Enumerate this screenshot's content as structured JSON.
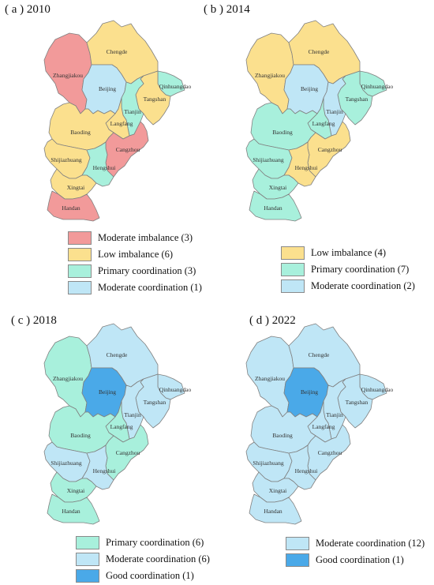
{
  "colors": {
    "moderate_imbalance": "#f29a9a",
    "low_imbalance": "#fbe08e",
    "primary_coordination": "#a8f0dc",
    "moderate_coordination": "#bfe6f6",
    "good_coordination": "#4aa9e8",
    "border": "#808080"
  },
  "cities": [
    "Zhangjiakou",
    "Chengde",
    "Beijing",
    "Qinhuangdao",
    "Tangshan",
    "Tianjin",
    "Langfang",
    "Baoding",
    "Cangzhou",
    "Shijiazhuang",
    "Hengshui",
    "Xingtai",
    "Handan"
  ],
  "panels": [
    {
      "title": "( a ) 2010",
      "legend": [
        {
          "label": "Moderate imbalance (3)",
          "class": "moderate_imbalance"
        },
        {
          "label": "Low imbalance (6)",
          "class": "low_imbalance"
        },
        {
          "label": "Primary coordination (3)",
          "class": "primary_coordination"
        },
        {
          "label": "Moderate coordination (1)",
          "class": "moderate_coordination"
        }
      ],
      "fills": {
        "Zhangjiakou": "moderate_imbalance",
        "Chengde": "low_imbalance",
        "Beijing": "moderate_coordination",
        "Qinhuangdao": "primary_coordination",
        "Tangshan": "low_imbalance",
        "Tianjin": "primary_coordination",
        "Langfang": "low_imbalance",
        "Baoding": "low_imbalance",
        "Cangzhou": "moderate_imbalance",
        "Shijiazhuang": "low_imbalance",
        "Hengshui": "primary_coordination",
        "Xingtai": "low_imbalance",
        "Handan": "moderate_imbalance"
      }
    },
    {
      "title": "( b ) 2014",
      "legend": [
        {
          "label": "Low imbalance (4)",
          "class": "low_imbalance"
        },
        {
          "label": "Primary coordination (7)",
          "class": "primary_coordination"
        },
        {
          "label": "Moderate coordination (2)",
          "class": "moderate_coordination"
        }
      ],
      "fills": {
        "Zhangjiakou": "low_imbalance",
        "Chengde": "low_imbalance",
        "Beijing": "moderate_coordination",
        "Qinhuangdao": "primary_coordination",
        "Tangshan": "primary_coordination",
        "Tianjin": "moderate_coordination",
        "Langfang": "primary_coordination",
        "Baoding": "primary_coordination",
        "Cangzhou": "low_imbalance",
        "Shijiazhuang": "primary_coordination",
        "Hengshui": "low_imbalance",
        "Xingtai": "primary_coordination",
        "Handan": "primary_coordination"
      }
    },
    {
      "title": "( c ) 2018",
      "legend": [
        {
          "label": "Primary coordination (6)",
          "class": "primary_coordination"
        },
        {
          "label": "Moderate coordination (6)",
          "class": "moderate_coordination"
        },
        {
          "label": "Good coordination (1)",
          "class": "good_coordination"
        }
      ],
      "fills": {
        "Zhangjiakou": "primary_coordination",
        "Chengde": "moderate_coordination",
        "Beijing": "good_coordination",
        "Qinhuangdao": "moderate_coordination",
        "Tangshan": "moderate_coordination",
        "Tianjin": "moderate_coordination",
        "Langfang": "primary_coordination",
        "Baoding": "primary_coordination",
        "Cangzhou": "primary_coordination",
        "Shijiazhuang": "moderate_coordination",
        "Hengshui": "moderate_coordination",
        "Xingtai": "primary_coordination",
        "Handan": "primary_coordination"
      }
    },
    {
      "title": "( d ) 2022",
      "legend": [
        {
          "label": "Moderate coordination (12)",
          "class": "moderate_coordination"
        },
        {
          "label": "Good coordination (1)",
          "class": "good_coordination"
        }
      ],
      "fills": {
        "Zhangjiakou": "moderate_coordination",
        "Chengde": "moderate_coordination",
        "Beijing": "good_coordination",
        "Qinhuangdao": "moderate_coordination",
        "Tangshan": "moderate_coordination",
        "Tianjin": "moderate_coordination",
        "Langfang": "moderate_coordination",
        "Baoding": "moderate_coordination",
        "Cangzhou": "moderate_coordination",
        "Shijiazhuang": "moderate_coordination",
        "Hengshui": "moderate_coordination",
        "Xingtai": "moderate_coordination",
        "Handan": "moderate_coordination"
      }
    }
  ]
}
